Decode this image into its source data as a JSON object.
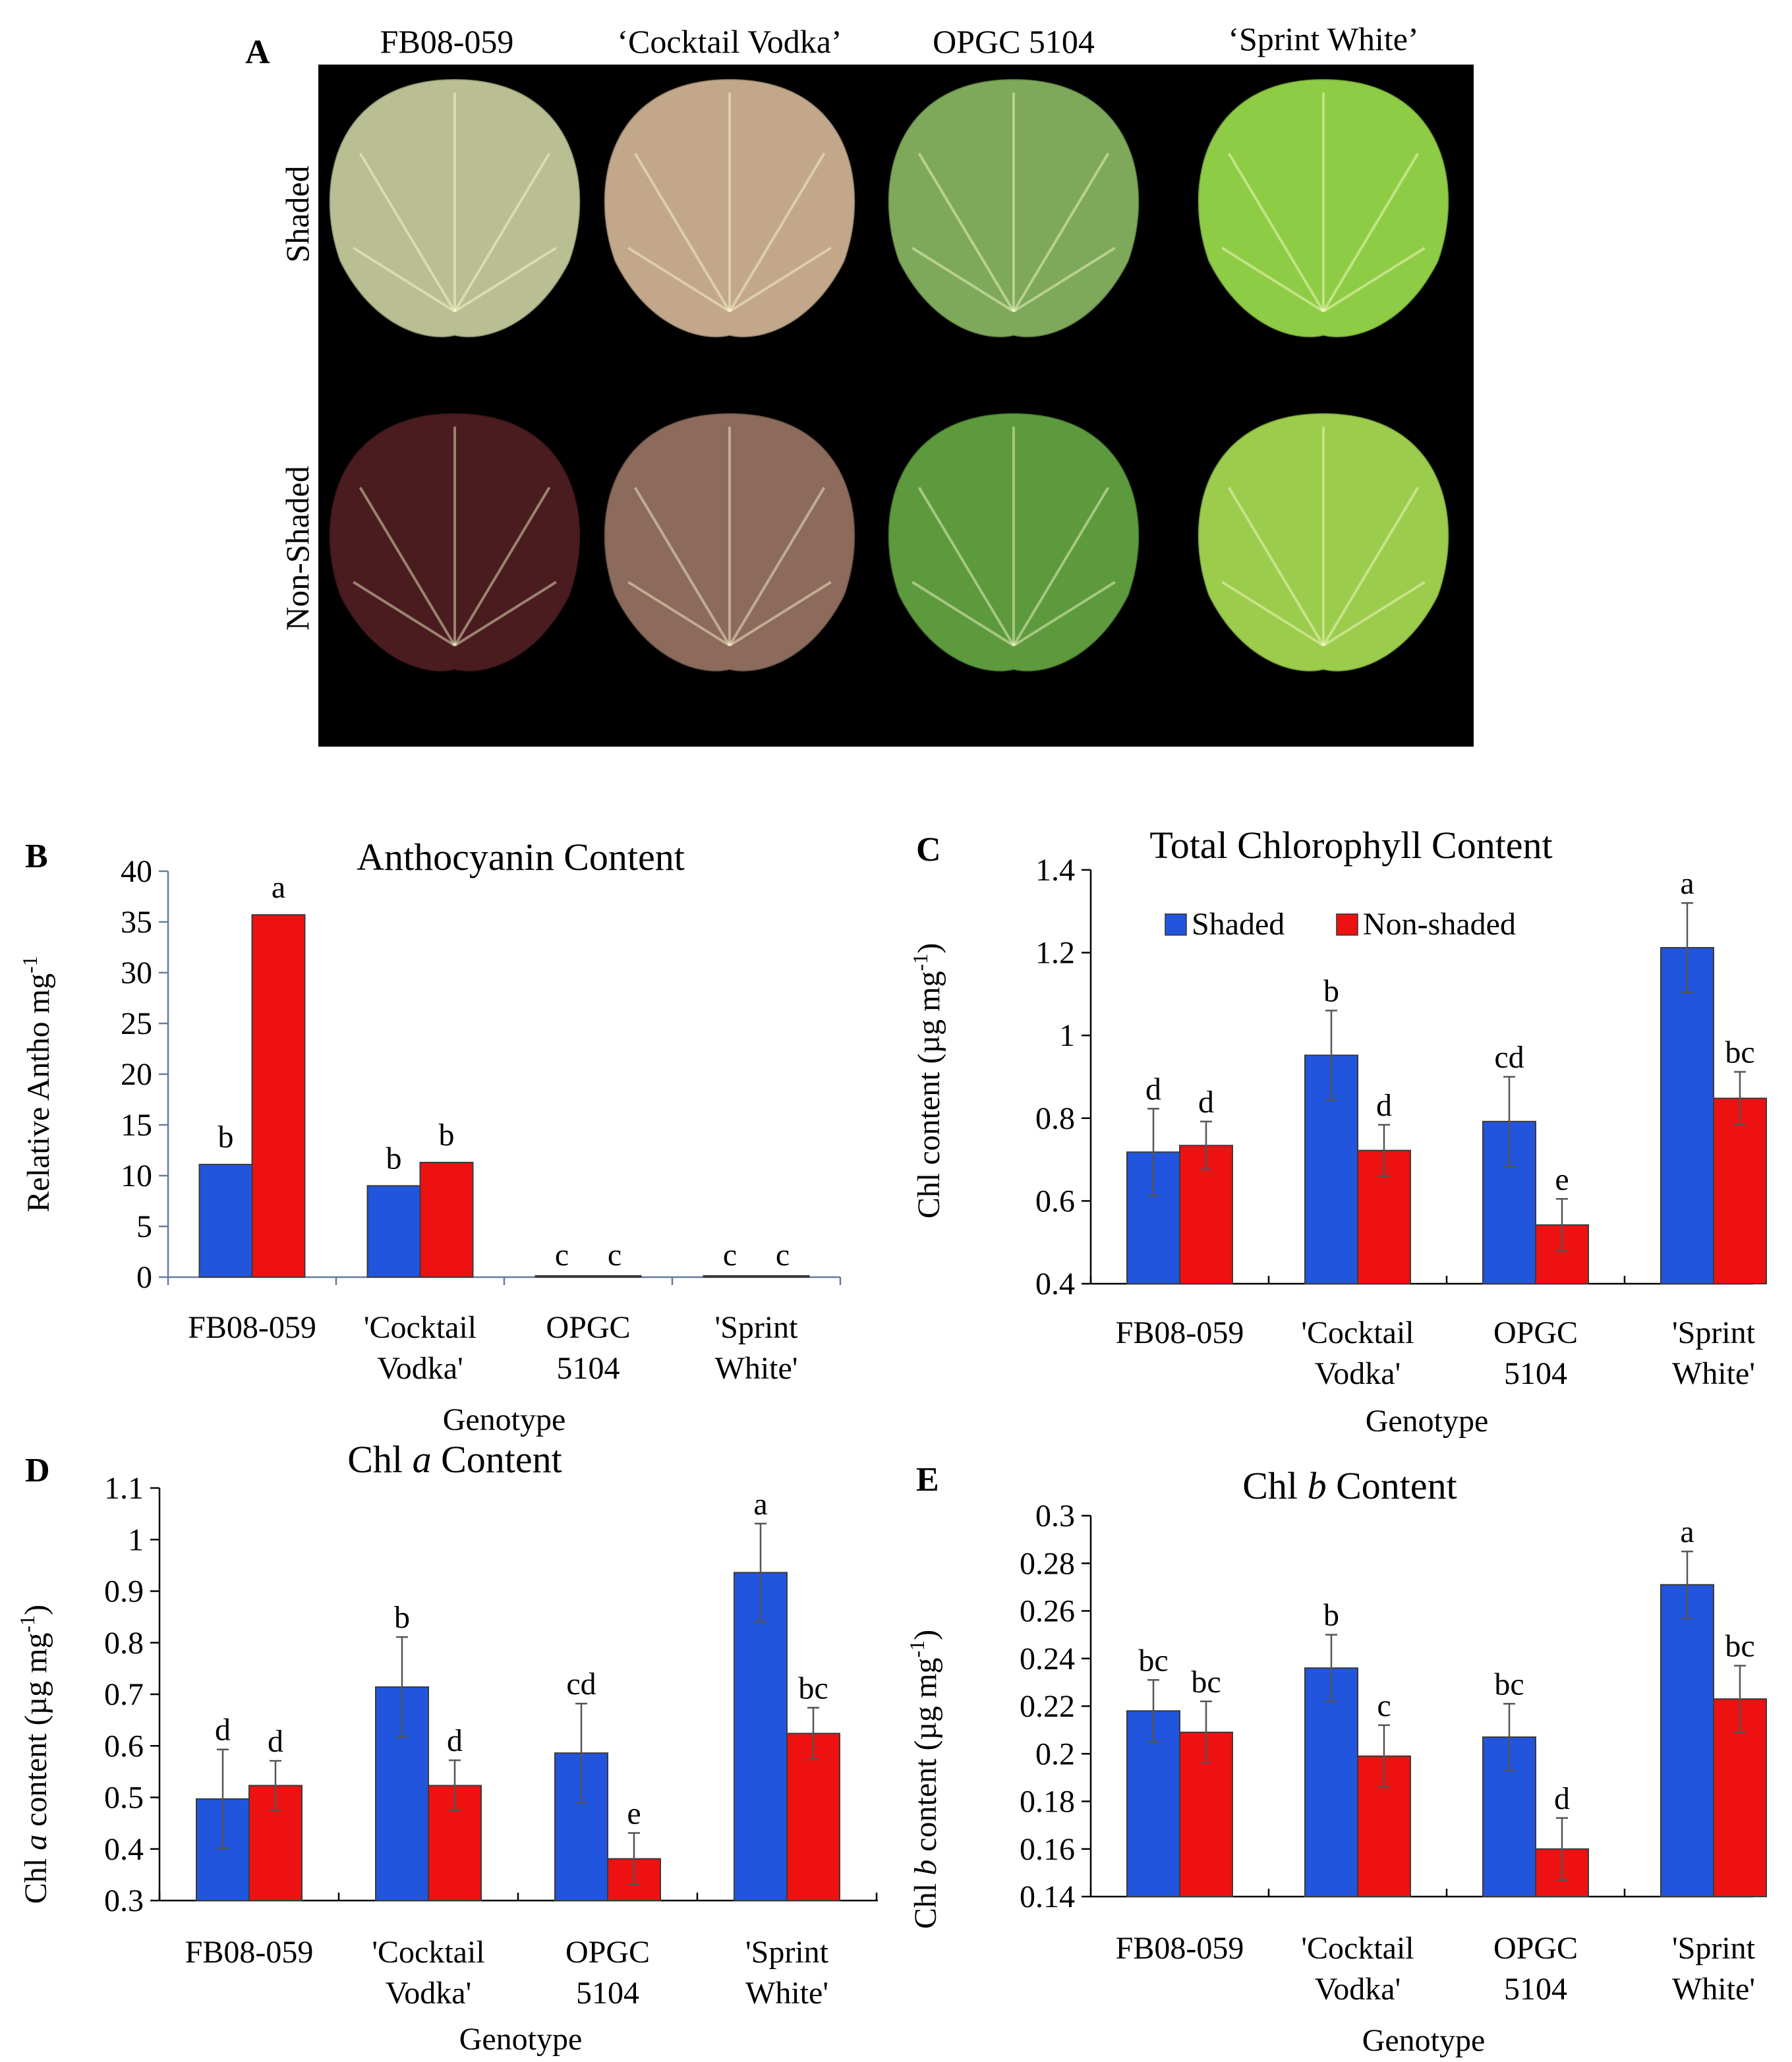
{
  "panel_a": {
    "label": "A",
    "columns": [
      "FB08-059",
      "‘Cocktail Vodka’",
      "OPGC 5104",
      "‘Sprint White’"
    ],
    "rows": [
      "Shaded",
      "Non-Shaded"
    ],
    "leaf_colors": {
      "Shaded": [
        "#b9bf92",
        "#c2a78a",
        "#7ea95a",
        "#8fcc45"
      ],
      "Non-Shaded": [
        "#4a1c1f",
        "#8c6a5c",
        "#5d9a3e",
        "#9ccc4c"
      ]
    }
  },
  "colors": {
    "shaded": "#2255dd",
    "non_shaded": "#ee1111",
    "error_bar": "#555555"
  },
  "chart_data": [
    {
      "id": "B",
      "type": "bar",
      "title": "Anthocyanin Content",
      "title_parts": [
        "Anthocyanin Content"
      ],
      "xlabel": "Genotype",
      "ylabel": "Relative Antho mg-1",
      "ylabel_parts": [
        "Relative Antho mg",
        "-1"
      ],
      "categories": [
        [
          "FB08-059"
        ],
        [
          "'Cocktail",
          "Vodka'"
        ],
        [
          "OPGC",
          "5104"
        ],
        [
          "'Sprint",
          "White'"
        ]
      ],
      "ylim": [
        0,
        40
      ],
      "yticks": [
        "0",
        "5",
        "10",
        "15",
        "20",
        "25",
        "30",
        "35",
        "40"
      ],
      "grid": false,
      "legend": null,
      "series": [
        {
          "name": "Shaded",
          "values": [
            11.1,
            9.0,
            0.1,
            0.1
          ],
          "errors": null,
          "letters": [
            "b",
            "b",
            "c",
            "c"
          ]
        },
        {
          "name": "Non-shaded",
          "values": [
            35.7,
            11.3,
            0.1,
            0.1
          ],
          "errors": null,
          "letters": [
            "a",
            "b",
            "c",
            "c"
          ]
        }
      ]
    },
    {
      "id": "C",
      "type": "bar",
      "title": "Total Chlorophyll Content",
      "title_parts": [
        "Total Chlorophyll Content"
      ],
      "xlabel": "Genotype",
      "ylabel": "Chl content (µg mg-1)",
      "ylabel_parts": [
        "Chl content (µg mg",
        "-1",
        ")"
      ],
      "categories": [
        [
          "FB08-059"
        ],
        [
          "'Cocktail",
          "Vodka'"
        ],
        [
          "OPGC",
          "5104"
        ],
        [
          "'Sprint",
          "White'"
        ]
      ],
      "ylim": [
        0.4,
        1.4
      ],
      "yticks": [
        "0.4",
        "0.6",
        "0.8",
        "1",
        "1.2",
        "1.4"
      ],
      "grid": false,
      "legend": "top-center",
      "series": [
        {
          "name": "Shaded",
          "values": [
            0.718,
            0.952,
            0.792,
            1.212
          ],
          "errors": [
            0.105,
            0.108,
            0.108,
            0.108
          ],
          "letters": [
            "d",
            "b",
            "cd",
            "a"
          ]
        },
        {
          "name": "Non-shaded",
          "values": [
            0.734,
            0.722,
            0.542,
            0.848
          ],
          "errors": [
            0.058,
            0.062,
            0.063,
            0.064
          ],
          "letters": [
            "d",
            "d",
            "e",
            "bc"
          ]
        }
      ]
    },
    {
      "id": "D",
      "type": "bar",
      "title": "Chl a Content",
      "title_parts": [
        "Chl ",
        "a",
        " Content"
      ],
      "xlabel": "Genotype",
      "ylabel": "Chl a content (µg mg-1)",
      "ylabel_parts": [
        "Chl ",
        "a",
        "  content (µg mg",
        "-1",
        ")"
      ],
      "categories": [
        [
          "FB08-059"
        ],
        [
          "'Cocktail",
          "Vodka'"
        ],
        [
          "OPGC",
          "5104"
        ],
        [
          "'Sprint",
          "White'"
        ]
      ],
      "ylim": [
        0.3,
        1.1
      ],
      "yticks": [
        "0.3",
        "0.4",
        "0.5",
        "0.6",
        "0.7",
        "0.8",
        "0.9",
        "1",
        "1.1"
      ],
      "grid": false,
      "legend": null,
      "series": [
        {
          "name": "Shaded",
          "values": [
            0.497,
            0.714,
            0.586,
            0.936
          ],
          "errors": [
            0.096,
            0.097,
            0.096,
            0.095
          ],
          "letters": [
            "d",
            "b",
            "cd",
            "a"
          ]
        },
        {
          "name": "Non-shaded",
          "values": [
            0.523,
            0.523,
            0.381,
            0.624
          ],
          "errors": [
            0.048,
            0.049,
            0.05,
            0.05
          ],
          "letters": [
            "d",
            "d",
            "e",
            "bc"
          ]
        }
      ]
    },
    {
      "id": "E",
      "type": "bar",
      "title": "Chl b Content",
      "title_parts": [
        "Chl ",
        "b",
        " Content"
      ],
      "xlabel": "Genotype",
      "ylabel": "Chl b content (µg mg-1)",
      "ylabel_parts": [
        "Chl ",
        "b",
        " content (µg mg",
        "-1",
        ")"
      ],
      "categories": [
        [
          "FB08-059"
        ],
        [
          "'Cocktail",
          "Vodka'"
        ],
        [
          "OPGC",
          "5104"
        ],
        [
          "'Sprint",
          "White'"
        ]
      ],
      "ylim": [
        0.14,
        0.3
      ],
      "yticks": [
        "0.14",
        "0.16",
        "0.18",
        "0.2",
        "0.22",
        "0.24",
        "0.26",
        "0.28",
        "0.3"
      ],
      "grid": false,
      "legend": null,
      "series": [
        {
          "name": "Shaded",
          "values": [
            0.218,
            0.236,
            0.207,
            0.271
          ],
          "errors": [
            0.013,
            0.014,
            0.014,
            0.014
          ],
          "letters": [
            "bc",
            "b",
            "bc",
            "a"
          ]
        },
        {
          "name": "Non-shaded",
          "values": [
            0.209,
            0.199,
            0.16,
            0.223
          ],
          "errors": [
            0.013,
            0.013,
            0.013,
            0.014
          ],
          "letters": [
            "bc",
            "c",
            "d",
            "bc"
          ]
        }
      ]
    }
  ]
}
